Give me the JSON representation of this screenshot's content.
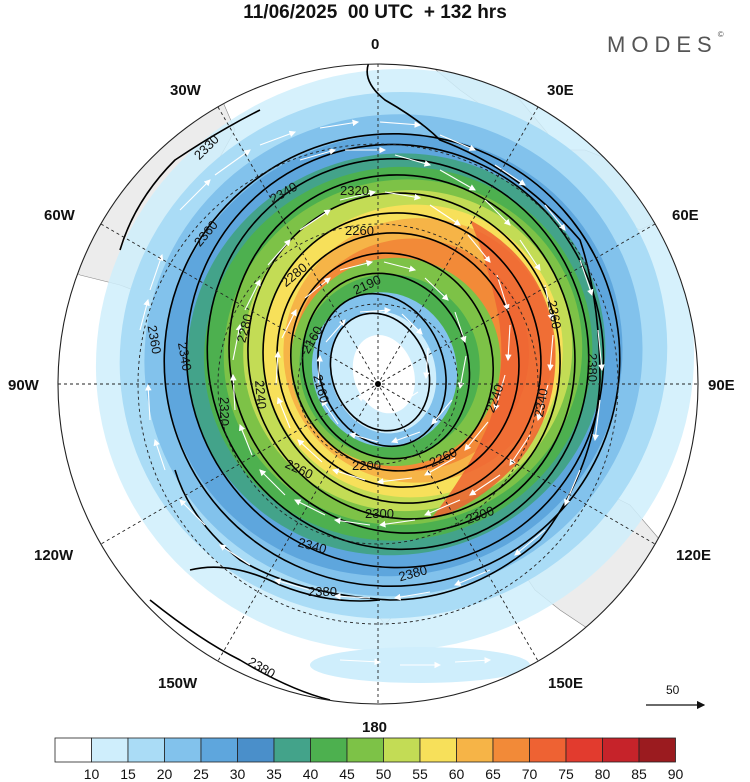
{
  "title": "11/06/2025  00 UTC  + 132 hrs",
  "brand": "MODES",
  "brand_mark": "©",
  "longitude_labels": {
    "top": "0",
    "bottom": "180",
    "left": "90W",
    "right": "90E",
    "w30": "30W",
    "e30": "30E",
    "w60": "60W",
    "e60": "60E",
    "w120": "120W",
    "e120": "120E",
    "w150": "150W",
    "e150": "150E"
  },
  "contour_labels": [
    {
      "id": "c2330",
      "text": "2330"
    },
    {
      "id": "c2340a",
      "text": "2340"
    },
    {
      "id": "c2360a",
      "text": "2360"
    },
    {
      "id": "c2320",
      "text": "2320"
    },
    {
      "id": "c2260a",
      "text": "2260"
    },
    {
      "id": "c2280",
      "text": "2280"
    },
    {
      "id": "c2190",
      "text": "2190"
    },
    {
      "id": "c2360b",
      "text": "2360"
    },
    {
      "id": "c2340b",
      "text": "2340"
    },
    {
      "id": "c2280b",
      "text": "2280"
    },
    {
      "id": "c2160",
      "text": "2160"
    },
    {
      "id": "c2360c",
      "text": "2360"
    },
    {
      "id": "c2380a",
      "text": "2380"
    },
    {
      "id": "c2320b",
      "text": "2320"
    },
    {
      "id": "c2240a",
      "text": "2240"
    },
    {
      "id": "c2160b",
      "text": "2160"
    },
    {
      "id": "c2240b",
      "text": "2240"
    },
    {
      "id": "c2340c",
      "text": "2340"
    },
    {
      "id": "c2200",
      "text": "2200"
    },
    {
      "id": "c2260b",
      "text": "2260"
    },
    {
      "id": "c2260c",
      "text": "2260"
    },
    {
      "id": "c2300",
      "text": "2300"
    },
    {
      "id": "c2300b",
      "text": "2300"
    },
    {
      "id": "c2340d",
      "text": "2340"
    },
    {
      "id": "c2380b",
      "text": "2380"
    },
    {
      "id": "c2380c",
      "text": "2380"
    },
    {
      "id": "c2380d",
      "text": "2380"
    }
  ],
  "reference_vector": "50",
  "colorbar": {
    "labels": [
      "10",
      "15",
      "20",
      "25",
      "30",
      "35",
      "40",
      "45",
      "50",
      "55",
      "60",
      "65",
      "70",
      "75",
      "80",
      "85",
      "90"
    ],
    "colors": [
      "#ffffff",
      "#cfeefc",
      "#aadcf6",
      "#82c2ec",
      "#5ea6dd",
      "#4a8fca",
      "#43a38a",
      "#4db04f",
      "#7dc247",
      "#c3dc55",
      "#f7e05a",
      "#f6b447",
      "#f28a38",
      "#ee6233",
      "#e23b2e",
      "#c6232a",
      "#9b1b1f"
    ]
  }
}
